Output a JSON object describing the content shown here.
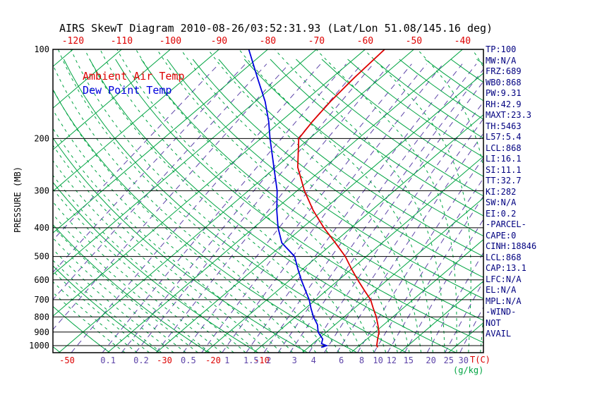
{
  "colors": {
    "temperature": "#dd0000",
    "dew_point": "#0000dd",
    "isotherm_green": "#00a442",
    "mixing_purple": "#5d44a8",
    "stats_text": "#000080",
    "axis_black": "#000000"
  },
  "legend": {
    "air_temp": "Ambient Air Temp",
    "dew_point": "Dew Point Temp"
  },
  "stats": {
    "lines": [
      "TP:100",
      "MW:N/A",
      "FRZ:689",
      "WB0:868",
      "PW:9.31",
      "RH:42.9",
      "MAXT:23.3",
      "TH:5463",
      "L57:5.4",
      "LCL:868",
      "LI:16.1",
      "SI:11.1",
      "TT:32.7",
      "KI:282",
      "SW:N/A",
      "EI:0.2",
      "-PARCEL-",
      "CAPE:0",
      "CINH:18846",
      "LCL:868",
      "CAP:13.1",
      "LFC:N/A",
      "EL:N/A",
      "MPL:N/A",
      "-WIND-",
      "NOT",
      "AVAIL"
    ]
  },
  "chart_data": {
    "type": "line",
    "title": "AIRS SkewT Diagram 2010-08-26/03:52:31.93 (Lat/Lon 51.08/145.16 deg)",
    "projection": "skew-t-log-p",
    "y_axis": {
      "label": "PRESSURE (MB)",
      "scale": "log",
      "ticks": [
        100,
        200,
        300,
        400,
        500,
        600,
        700,
        800,
        900,
        1000
      ],
      "range": [
        100,
        1056
      ]
    },
    "x_axis": {
      "unit_label": "T(C)",
      "top_tick_labels": [
        -120,
        -110,
        -100,
        -90,
        -80,
        -70,
        -60,
        -50,
        -40
      ],
      "bottom_tick_labels": [
        -50,
        -30,
        -20,
        -10
      ]
    },
    "mixing_ratio": {
      "unit_label": "(g/kg)",
      "labels": [
        0.1,
        0.2,
        0.5,
        1,
        1.5,
        2,
        3,
        4,
        6,
        8,
        10,
        12,
        15,
        20,
        25,
        30
      ]
    },
    "grid": {
      "isotherms_c": {
        "min": -140,
        "max": 40,
        "step": 10
      },
      "dry_adiabats_k": {
        "min": 220,
        "max": 460,
        "step": 10
      },
      "moist_adiabats_c": {
        "min": -40,
        "max": 40,
        "step": 2.5
      },
      "mixing_lines_gkg": [
        0.002,
        0.005,
        0.01,
        0.02,
        0.05,
        0.1,
        0.15,
        0.2,
        0.3,
        0.5,
        0.7,
        1,
        1.5,
        2,
        2.5,
        3,
        4,
        5,
        6,
        8,
        10,
        12,
        15,
        20,
        25,
        30
      ]
    },
    "series": [
      {
        "name": "Ambient Air Temp",
        "color": "#dd0000",
        "units": {
          "pressure": "mb",
          "temperature": "C"
        },
        "points": [
          [
            1013,
            14.2
          ],
          [
            1000,
            13.6
          ],
          [
            950,
            12.2
          ],
          [
            900,
            10.8
          ],
          [
            850,
            8.8
          ],
          [
            800,
            6.6
          ],
          [
            750,
            4.0
          ],
          [
            700,
            1.3
          ],
          [
            650,
            -2.3
          ],
          [
            600,
            -6.1
          ],
          [
            550,
            -10.1
          ],
          [
            500,
            -14.3
          ],
          [
            450,
            -19.6
          ],
          [
            400,
            -25.6
          ],
          [
            350,
            -31.9
          ],
          [
            300,
            -38.5
          ],
          [
            250,
            -45.5
          ],
          [
            200,
            -52.2
          ],
          [
            175,
            -53.5
          ],
          [
            150,
            -54.6
          ],
          [
            125,
            -55.4
          ],
          [
            100,
            -56.0
          ]
        ]
      },
      {
        "name": "Dew Point Temp",
        "color": "#0000dd",
        "units": {
          "pressure": "mb",
          "temperature": "C"
        },
        "points": [
          [
            1013,
            2.6
          ],
          [
            1000,
            3.3
          ],
          [
            985,
            1.8
          ],
          [
            950,
            0.9
          ],
          [
            925,
            -0.4
          ],
          [
            900,
            -1.7
          ],
          [
            850,
            -3.6
          ],
          [
            800,
            -6.3
          ],
          [
            750,
            -8.8
          ],
          [
            700,
            -11.3
          ],
          [
            650,
            -14.4
          ],
          [
            600,
            -17.7
          ],
          [
            550,
            -21.1
          ],
          [
            500,
            -24.7
          ],
          [
            450,
            -30.6
          ],
          [
            400,
            -35.0
          ],
          [
            350,
            -39.4
          ],
          [
            300,
            -44.1
          ],
          [
            250,
            -50.4
          ],
          [
            200,
            -58.1
          ],
          [
            175,
            -62.5
          ],
          [
            150,
            -68.0
          ],
          [
            125,
            -75.2
          ],
          [
            100,
            -83.9
          ]
        ]
      }
    ]
  }
}
